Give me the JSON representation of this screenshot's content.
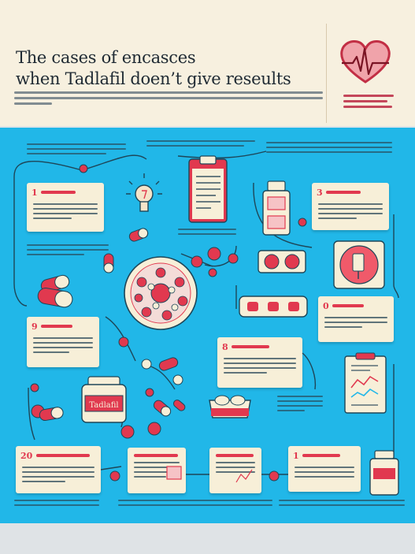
{
  "poster": {
    "title_line1": "The cases of encasces",
    "title_line2": "when Tadlafil doen’t give reseults",
    "bottle_label": "Tadlafil",
    "heart_icon": "heart-ecg-icon",
    "colors": {
      "background": "#21b7e8",
      "header": "#f7f0df",
      "accent": "#e1394f",
      "card": "#f7efd8",
      "line": "#1e4658"
    }
  },
  "cards": [
    {
      "num": "1"
    },
    {
      "num": "3"
    },
    {
      "num": "9"
    },
    {
      "num": "8"
    },
    {
      "num": "0"
    },
    {
      "num": "20"
    },
    {
      "num": "1"
    }
  ]
}
